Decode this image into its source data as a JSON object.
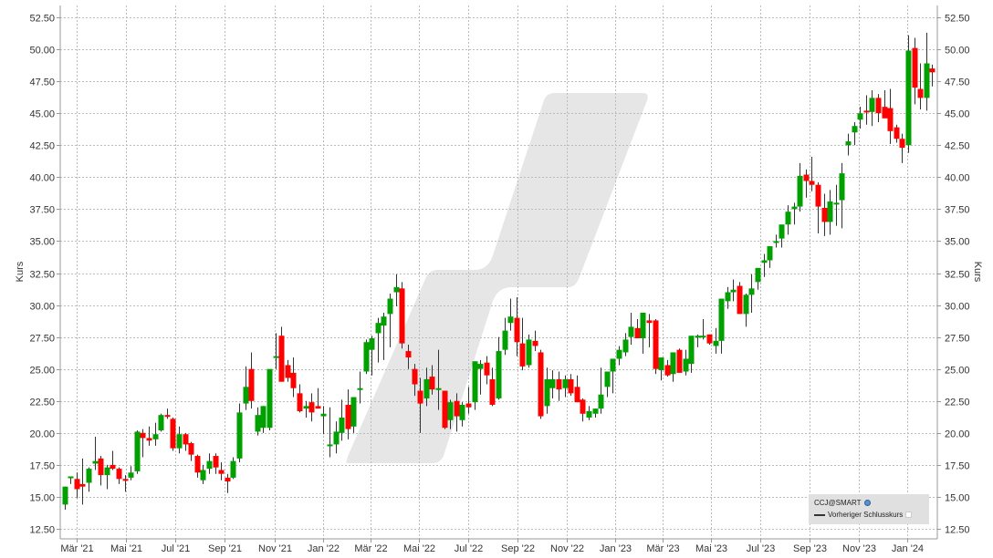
{
  "chart_data": {
    "type": "candlestick",
    "title": "",
    "symbol": "CCJ@SMART",
    "ylabel_left": "Kurs",
    "ylabel_right": "Kurs",
    "xlabel": "",
    "ylim": [
      11.75,
      53.5
    ],
    "y_ticks": [
      "12.50",
      "15.00",
      "17.50",
      "20.00",
      "22.50",
      "25.00",
      "27.50",
      "30.00",
      "32.50",
      "35.00",
      "37.50",
      "40.00",
      "42.50",
      "45.00",
      "47.50",
      "50.00",
      "52.50"
    ],
    "x_ticks": [
      "Mär '21",
      "Mai '21",
      "Jul '21",
      "Sep '21",
      "Nov '21",
      "Jan '22",
      "Mär '22",
      "Mai '22",
      "Jul '22",
      "Sep '22",
      "Nov '22",
      "Jan '23",
      "Mär '23",
      "Mai '23",
      "Jul '23",
      "Sep '23",
      "Nov '23",
      "Jan '24"
    ],
    "grid": true,
    "legend_position": "bottom-right",
    "legend": [
      "CCJ@SMART",
      "Vorheriger Schlusskurs"
    ],
    "colors": {
      "up": "#00a000",
      "down": "#ff0000",
      "wick": "#222222",
      "grid": "#bbbbbb",
      "watermark": "#e6e6e6",
      "legend_bg": "#e0e0e0"
    },
    "interval": "weekly",
    "candles": [
      [
        14.4,
        15.8,
        14.0,
        15.8
      ],
      [
        16.6,
        16.6,
        16.0,
        16.6
      ],
      [
        16.4,
        16.9,
        14.9,
        15.6
      ],
      [
        16.0,
        18.0,
        14.4,
        15.8
      ],
      [
        16.1,
        17.3,
        15.4,
        17.2
      ],
      [
        17.6,
        19.7,
        17.1,
        17.8
      ],
      [
        18.0,
        18.2,
        15.9,
        16.7
      ],
      [
        16.7,
        17.5,
        15.6,
        17.3
      ],
      [
        17.5,
        18.6,
        17.1,
        17.2
      ],
      [
        17.2,
        17.3,
        16.0,
        16.4
      ],
      [
        16.4,
        16.7,
        15.4,
        16.3
      ],
      [
        16.5,
        17.4,
        16.3,
        16.9
      ],
      [
        17.0,
        20.2,
        16.8,
        20.1
      ],
      [
        20.0,
        20.3,
        18.1,
        19.6
      ],
      [
        19.6,
        20.5,
        19.0,
        19.4
      ],
      [
        19.5,
        20.8,
        19.0,
        19.9
      ],
      [
        20.2,
        21.5,
        20.1,
        21.4
      ],
      [
        21.4,
        21.9,
        21.1,
        21.3
      ],
      [
        21.1,
        21.2,
        18.6,
        18.8
      ],
      [
        18.8,
        20.5,
        18.4,
        19.9
      ],
      [
        19.9,
        20.0,
        18.6,
        19.1
      ],
      [
        19.2,
        19.3,
        17.8,
        18.3
      ],
      [
        18.2,
        18.3,
        16.5,
        16.9
      ],
      [
        16.3,
        17.5,
        16.0,
        17.1
      ],
      [
        17.2,
        18.4,
        16.8,
        17.8
      ],
      [
        18.2,
        18.4,
        16.8,
        17.3
      ],
      [
        17.1,
        17.7,
        16.3,
        16.8
      ],
      [
        16.5,
        16.8,
        15.3,
        16.2
      ],
      [
        16.5,
        18.1,
        16.4,
        17.8
      ],
      [
        18.0,
        22.3,
        17.7,
        21.6
      ],
      [
        22.3,
        25.2,
        21.8,
        23.6
      ],
      [
        25.0,
        26.3,
        21.9,
        22.5
      ],
      [
        20.1,
        22.0,
        19.8,
        21.4
      ],
      [
        20.4,
        22.1,
        20.0,
        22.1
      ],
      [
        20.4,
        23.8,
        20.2,
        25.0
      ],
      [
        26.0,
        27.8,
        25.0,
        26.0
      ],
      [
        27.6,
        28.3,
        24.3,
        24.0
      ],
      [
        25.3,
        25.7,
        24.0,
        24.3
      ],
      [
        24.7,
        25.9,
        22.8,
        23.5
      ],
      [
        23.1,
        23.8,
        21.6,
        21.7
      ],
      [
        21.9,
        22.5,
        21.2,
        22.1
      ],
      [
        22.4,
        23.1,
        20.9,
        21.6
      ],
      [
        22.1,
        23.5,
        21.9,
        21.9
      ],
      [
        21.3,
        22.1,
        19.9,
        21.5
      ],
      [
        19.0,
        22.0,
        18.1,
        19.1
      ],
      [
        19.1,
        20.9,
        18.4,
        20.1
      ],
      [
        20.0,
        22.6,
        19.4,
        21.2
      ],
      [
        22.2,
        23.4,
        19.5,
        20.3
      ],
      [
        20.5,
        22.8,
        20.0,
        22.8
      ],
      [
        23.5,
        24.8,
        22.3,
        23.5
      ],
      [
        24.8,
        27.3,
        24.6,
        27.1
      ],
      [
        26.5,
        27.6,
        24.5,
        27.4
      ],
      [
        27.8,
        29.0,
        25.5,
        28.6
      ],
      [
        28.4,
        29.4,
        25.7,
        29.1
      ],
      [
        29.3,
        30.9,
        26.7,
        30.5
      ],
      [
        31.0,
        32.4,
        29.9,
        31.4
      ],
      [
        31.3,
        31.8,
        26.6,
        27.0
      ],
      [
        26.4,
        26.9,
        25.0,
        25.9
      ],
      [
        25.0,
        25.4,
        22.9,
        23.8
      ],
      [
        23.3,
        24.3,
        20.0,
        22.3
      ],
      [
        22.7,
        25.1,
        22.1,
        24.2
      ],
      [
        24.4,
        25.3,
        23.0,
        23.4
      ],
      [
        23.4,
        26.5,
        21.8,
        23.5
      ],
      [
        23.3,
        23.3,
        20.3,
        20.4
      ],
      [
        21.0,
        22.6,
        20.3,
        22.4
      ],
      [
        22.5,
        23.1,
        20.1,
        21.3
      ],
      [
        21.0,
        22.4,
        20.5,
        22.2
      ],
      [
        22.3,
        23.6,
        21.5,
        22.0
      ],
      [
        22.4,
        25.6,
        21.8,
        25.6
      ],
      [
        25.0,
        25.7,
        23.0,
        25.4
      ],
      [
        25.5,
        26.0,
        23.8,
        24.5
      ],
      [
        24.2,
        25.1,
        22.1,
        22.2
      ],
      [
        22.7,
        27.5,
        22.6,
        26.4
      ],
      [
        26.5,
        29.0,
        26.1,
        28.0
      ],
      [
        28.6,
        30.5,
        28.0,
        29.1
      ],
      [
        29.0,
        30.6,
        26.0,
        27.1
      ],
      [
        27.0,
        29.0,
        24.9,
        25.2
      ],
      [
        25.3,
        27.7,
        25.1,
        27.3
      ],
      [
        27.2,
        28.0,
        26.4,
        26.8
      ],
      [
        26.3,
        26.5,
        21.1,
        21.3
      ],
      [
        22.1,
        25.1,
        21.5,
        24.2
      ],
      [
        23.5,
        24.9,
        22.7,
        24.2
      ],
      [
        24.2,
        24.8,
        22.5,
        23.4
      ],
      [
        23.5,
        24.5,
        22.8,
        24.2
      ],
      [
        24.2,
        24.6,
        22.9,
        23.1
      ],
      [
        23.6,
        24.5,
        22.4,
        22.4
      ],
      [
        22.6,
        22.7,
        20.9,
        21.5
      ],
      [
        21.2,
        22.1,
        21.0,
        21.7
      ],
      [
        21.5,
        21.9,
        21.2,
        21.9
      ],
      [
        21.9,
        25.1,
        21.5,
        23.0
      ],
      [
        23.6,
        24.5,
        22.8,
        24.8
      ],
      [
        24.8,
        25.6,
        23.1,
        25.8
      ],
      [
        25.8,
        26.8,
        25.3,
        26.5
      ],
      [
        26.3,
        27.8,
        26.0,
        27.3
      ],
      [
        27.5,
        29.4,
        26.9,
        28.3
      ],
      [
        28.2,
        28.9,
        27.5,
        27.4
      ],
      [
        27.4,
        28.6,
        26.2,
        29.4
      ],
      [
        28.8,
        29.3,
        26.7,
        28.6
      ],
      [
        28.8,
        28.9,
        24.6,
        25.0
      ],
      [
        24.9,
        25.6,
        24.1,
        25.9
      ],
      [
        25.3,
        25.7,
        24.4,
        24.5
      ],
      [
        24.6,
        26.0,
        24.0,
        26.3
      ],
      [
        26.5,
        26.6,
        24.9,
        24.7
      ],
      [
        24.8,
        26.5,
        24.5,
        25.8
      ],
      [
        25.4,
        27.3,
        24.7,
        27.6
      ],
      [
        27.6,
        27.7,
        26.7,
        27.6
      ],
      [
        27.6,
        28.9,
        27.3,
        27.6
      ],
      [
        27.7,
        27.7,
        26.9,
        27.0
      ],
      [
        26.8,
        28.2,
        26.2,
        27.2
      ],
      [
        27.2,
        30.3,
        26.2,
        30.5
      ],
      [
        30.3,
        31.4,
        29.7,
        31.0
      ],
      [
        31.0,
        32.0,
        30.3,
        31.2
      ],
      [
        31.5,
        31.8,
        29.3,
        29.3
      ],
      [
        29.3,
        30.9,
        28.3,
        30.8
      ],
      [
        30.8,
        32.4,
        29.4,
        31.3
      ],
      [
        31.8,
        32.9,
        31.2,
        32.9
      ],
      [
        33.3,
        34.0,
        32.2,
        33.5
      ],
      [
        33.5,
        34.6,
        32.9,
        34.6
      ],
      [
        35.0,
        35.5,
        34.5,
        35.0
      ],
      [
        35.2,
        36.1,
        34.5,
        36.3
      ],
      [
        36.3,
        37.8,
        35.5,
        37.3
      ],
      [
        37.5,
        38.0,
        36.3,
        37.7
      ],
      [
        37.7,
        41.1,
        37.3,
        40.1
      ],
      [
        40.2,
        40.6,
        38.4,
        39.7
      ],
      [
        39.7,
        41.6,
        38.9,
        39.4
      ],
      [
        39.4,
        39.6,
        35.6,
        37.7
      ],
      [
        37.6,
        38.7,
        35.4,
        36.5
      ],
      [
        36.5,
        39.0,
        35.5,
        38.1
      ],
      [
        38.0,
        39.4,
        36.2,
        38.0
      ],
      [
        38.2,
        41.1,
        36.0,
        40.3
      ],
      [
        42.5,
        43.4,
        41.7,
        42.8
      ],
      [
        43.5,
        44.3,
        42.5,
        44.0
      ],
      [
        44.5,
        45.5,
        43.8,
        45.0
      ],
      [
        45.2,
        46.4,
        44.1,
        45.1
      ],
      [
        45.1,
        46.8,
        44.0,
        46.2
      ],
      [
        46.2,
        46.5,
        44.3,
        45.0
      ],
      [
        45.5,
        46.8,
        44.9,
        44.6
      ],
      [
        45.4,
        46.9,
        42.6,
        43.6
      ],
      [
        43.9,
        44.1,
        42.7,
        43.0
      ],
      [
        43.0,
        43.4,
        41.1,
        42.3
      ],
      [
        42.5,
        51.1,
        41.9,
        49.9
      ],
      [
        50.1,
        50.9,
        45.7,
        47.0
      ],
      [
        46.9,
        48.9,
        45.3,
        46.2
      ],
      [
        46.2,
        51.3,
        45.2,
        48.9
      ],
      [
        48.5,
        48.8,
        47.1,
        48.2
      ]
    ]
  },
  "legend": {
    "symbol": "CCJ@SMART",
    "prev_close_label": "Vorheriger Schlusskurs"
  },
  "axes": {
    "left_label": "Kurs",
    "right_label": "Kurs"
  }
}
